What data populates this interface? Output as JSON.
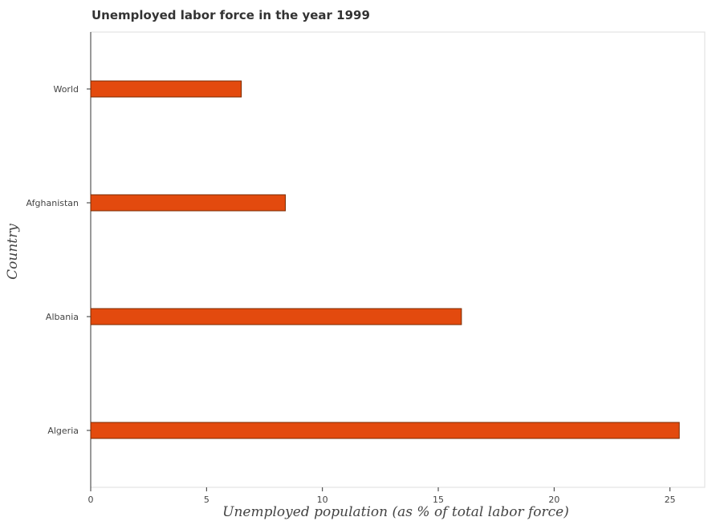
{
  "chart_data": {
    "type": "bar",
    "orientation": "horizontal",
    "title": "Unemployed labor force in the year 1999",
    "xlabel": "Unemployed population (as % of total labor force)",
    "ylabel": "Country",
    "categories": [
      "World",
      "Afghanistan",
      "Albania",
      "Algeria"
    ],
    "values": [
      6.5,
      8.4,
      16.0,
      25.4
    ],
    "xlim": [
      0,
      26.5
    ],
    "xticks": [
      0,
      5,
      10,
      15,
      20,
      25
    ],
    "xtick_labels": [
      "0",
      "5",
      "10",
      "15",
      "20",
      "25"
    ],
    "grid": false,
    "legend": "none",
    "colors": {
      "bar_fill": "#e34a0e",
      "bar_edge": "#7a2a00"
    }
  }
}
